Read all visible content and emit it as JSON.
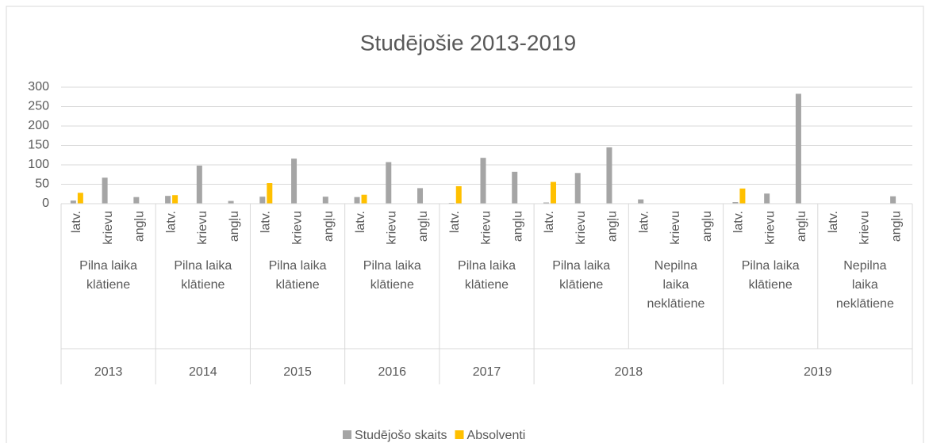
{
  "chart_data": {
    "type": "bar",
    "title": "Studējošie 2013-2019",
    "categories": [
      "latv.",
      "krievu",
      "angļu",
      "latv.",
      "krievu",
      "angļu",
      "latv.",
      "krievu",
      "angļu",
      "latv.",
      "krievu",
      "angļu",
      "latv.",
      "krievu",
      "angļu",
      "latv.",
      "krievu",
      "angļu",
      "latv.",
      "krievu",
      "angļu",
      "latv.",
      "krievu",
      "angļu",
      "latv.",
      "krievu",
      "angļu"
    ],
    "category_groups": [
      {
        "label": "2013",
        "subgroups": [
          "Pilna laika klātiene"
        ]
      },
      {
        "label": "2014",
        "subgroups": [
          "Pilna laika klātiene"
        ]
      },
      {
        "label": "2015",
        "subgroups": [
          "Pilna laika klātiene"
        ]
      },
      {
        "label": "2016",
        "subgroups": [
          "Pilna laika klātiene"
        ]
      },
      {
        "label": "2017",
        "subgroups": [
          "Pilna laika klātiene"
        ]
      },
      {
        "label": "2018",
        "subgroups": [
          "Pilna laika klātiene",
          "Nepilna laika neklātiene"
        ]
      },
      {
        "label": "2019",
        "subgroups": [
          "Pilna laika klātiene",
          "Nepilna laika neklātiene"
        ]
      }
    ],
    "series": [
      {
        "name": "Studējošo skaits",
        "color": "#a5a5a5",
        "values": [
          8,
          67,
          17,
          20,
          98,
          7,
          18,
          116,
          18,
          17,
          107,
          40,
          2,
          118,
          82,
          3,
          79,
          145,
          11,
          null,
          null,
          4,
          26,
          283,
          null,
          null,
          19
        ]
      },
      {
        "name": "Absolventi",
        "color": "#ffc000",
        "values": [
          28,
          null,
          null,
          22,
          null,
          null,
          53,
          null,
          null,
          23,
          null,
          null,
          45,
          null,
          null,
          56,
          null,
          null,
          null,
          null,
          null,
          39,
          null,
          null,
          null,
          null,
          null
        ]
      }
    ],
    "ylim": [
      0,
      300
    ],
    "yticks": [
      0,
      50,
      100,
      150,
      200,
      250,
      300
    ],
    "grid": true,
    "legend": "bottom"
  }
}
